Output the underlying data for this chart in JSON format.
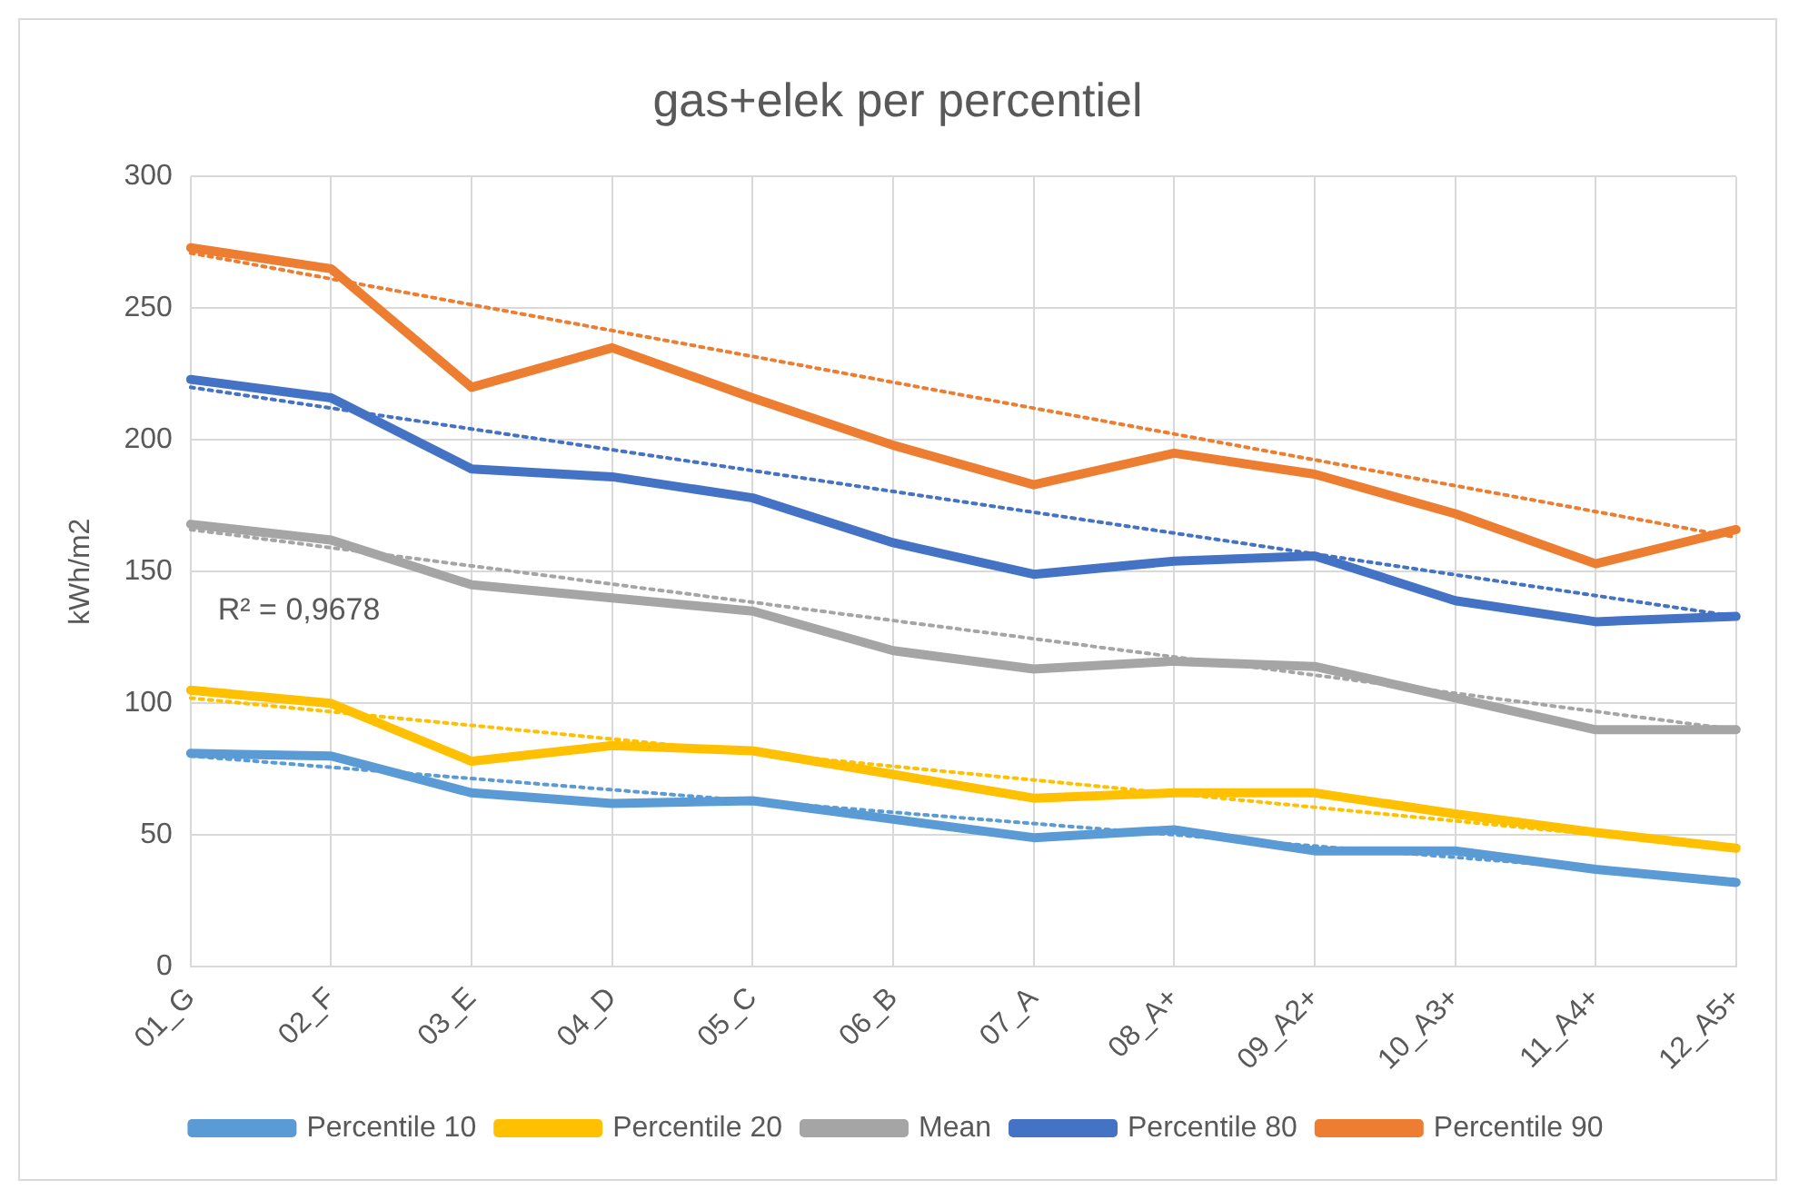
{
  "chart_data": {
    "type": "line",
    "title": "gas+elek per percentiel",
    "ylabel": "kWh/m2",
    "categories": [
      "01_G",
      "02_F",
      "03_E",
      "04_D",
      "05_C",
      "06_B",
      "07_A",
      "08_A+",
      "09_A2+",
      "10_A3+",
      "11_A4+",
      "12_A5+"
    ],
    "ylim": [
      0,
      300
    ],
    "yticks": [
      0,
      50,
      100,
      150,
      200,
      250,
      300
    ],
    "grid": true,
    "legend": "bottom",
    "marker": "none",
    "line_style": "solid",
    "annotations": [
      "R² = 0,9678"
    ],
    "series": [
      {
        "name": "Percentile 10",
        "color": "#5b9bd5",
        "values": [
          81,
          80,
          66,
          62,
          63,
          56,
          49,
          52,
          44,
          44,
          37,
          32
        ]
      },
      {
        "name": "Percentile 20",
        "color": "#ffc000",
        "values": [
          105,
          100,
          78,
          84,
          82,
          73,
          64,
          66,
          66,
          58,
          51,
          45
        ]
      },
      {
        "name": "Mean",
        "color": "#a5a5a5",
        "values": [
          168,
          162,
          145,
          140,
          135,
          120,
          113,
          116,
          114,
          102,
          90,
          90
        ]
      },
      {
        "name": "Percentile 80",
        "color": "#4472c4",
        "values": [
          223,
          216,
          189,
          186,
          178,
          161,
          149,
          154,
          156,
          139,
          131,
          133
        ]
      },
      {
        "name": "Percentile 90",
        "color": "#ed7d31",
        "values": [
          273,
          265,
          220,
          235,
          216,
          198,
          183,
          195,
          187,
          172,
          153,
          166
        ]
      },
      {
        "type": "line",
        "line_style": "dotted",
        "color": "#5b9bd5",
        "x": [
          "01_G",
          "12_A5+"
        ],
        "values": [
          80,
          33
        ]
      },
      {
        "type": "line",
        "line_style": "dotted",
        "color": "#ffc000",
        "x": [
          "01_G",
          "12_A5+"
        ],
        "values": [
          102,
          45
        ]
      },
      {
        "type": "line",
        "line_style": "dotted",
        "color": "#a5a5a5",
        "x": [
          "01_G",
          "12_A5+"
        ],
        "values": [
          166,
          90
        ]
      },
      {
        "type": "line",
        "line_style": "dotted",
        "color": "#4472c4",
        "x": [
          "01_G",
          "12_A5+"
        ],
        "values": [
          220,
          133
        ]
      },
      {
        "type": "line",
        "line_style": "dotted",
        "color": "#ed7d31",
        "x": [
          "01_G",
          "12_A5+"
        ],
        "values": [
          271,
          163
        ]
      }
    ]
  }
}
